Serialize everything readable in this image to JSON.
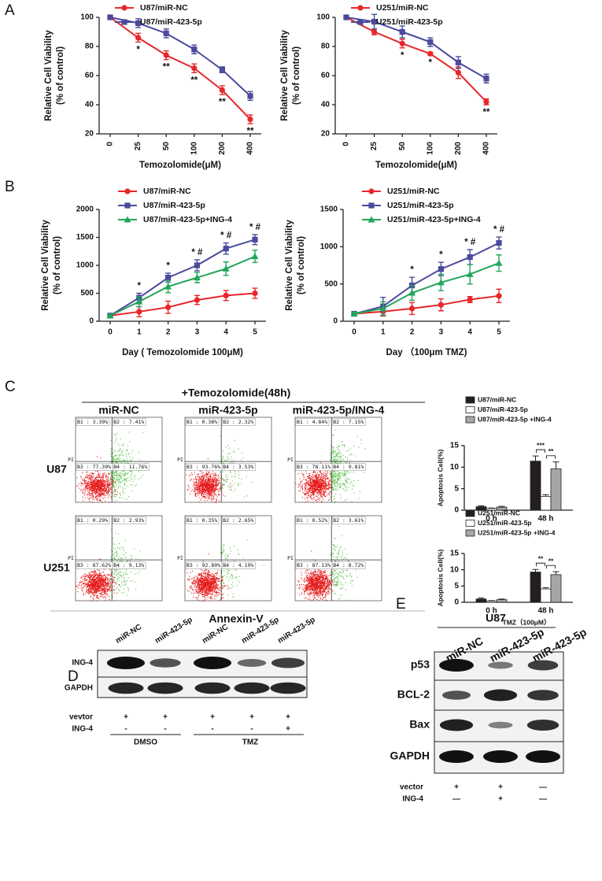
{
  "panel_labels": [
    "A",
    "B",
    "C",
    "D",
    "E"
  ],
  "chart_data": [
    {
      "type": "line",
      "xlabel": "Temozolomide(μM)",
      "ylabel": [
        "Relative Cell Viability",
        "(% of control)"
      ],
      "categories": [
        "0",
        "25",
        "50",
        "100",
        "200",
        "400"
      ],
      "ylim": [
        20,
        100
      ],
      "yticks": [
        20,
        40,
        60,
        80,
        100
      ],
      "legend": "upper left",
      "series": [
        {
          "name": "U87/miR-NC",
          "color": "#e8262b",
          "values": [
            100,
            86,
            74,
            65,
            50,
            30
          ],
          "errors": [
            1,
            3,
            3,
            3,
            3,
            3
          ]
        },
        {
          "name": "U87/miR-423-5p",
          "color": "#4b4a9c",
          "values": [
            100,
            96,
            89,
            78,
            64,
            46
          ],
          "errors": [
            1,
            3,
            3,
            3,
            2,
            3
          ]
        }
      ],
      "significance": [
        null,
        "*",
        "**",
        "**",
        "**",
        "**"
      ],
      "significance_position": "below"
    },
    {
      "type": "line",
      "xlabel": "Temozolomide(μM)",
      "ylabel": [
        "Relative Cell Viability",
        "(% of control)"
      ],
      "categories": [
        "0",
        "25",
        "50",
        "100",
        "200",
        "400"
      ],
      "ylim": [
        20,
        100
      ],
      "yticks": [
        20,
        40,
        60,
        80,
        100
      ],
      "legend": "upper left",
      "series": [
        {
          "name": "U251/miR-NC",
          "color": "#e8262b",
          "values": [
            100,
            90,
            82,
            75,
            62,
            42
          ],
          "errors": [
            1,
            2,
            3,
            1,
            4,
            2
          ]
        },
        {
          "name": "U251/miR-423-5p",
          "color": "#4b4a9c",
          "values": [
            100,
            97,
            90,
            83,
            69,
            58
          ],
          "errors": [
            1,
            5,
            4,
            3,
            4,
            3
          ]
        }
      ],
      "significance": [
        null,
        null,
        "*",
        "*",
        null,
        "**"
      ],
      "significance_position": "below"
    },
    {
      "type": "line",
      "xlabel": "Day ( Temozolomide 100μM)",
      "ylabel": [
        "Relative Cell Viability",
        "(% of control)"
      ],
      "categories": [
        "0",
        "1",
        "2",
        "3",
        "4",
        "5"
      ],
      "ylim": [
        0,
        2000
      ],
      "yticks": [
        0,
        500,
        1000,
        1500,
        2000
      ],
      "legend": "upper left",
      "series": [
        {
          "name": "U87/miR-NC",
          "color": "#e8262b",
          "values": [
            100,
            170,
            250,
            380,
            460,
            500
          ],
          "errors": [
            20,
            90,
            110,
            80,
            90,
            90
          ]
        },
        {
          "name": "U87/miR-423-5p",
          "color": "#4b4a9c",
          "values": [
            100,
            420,
            780,
            1000,
            1300,
            1460
          ],
          "errors": [
            20,
            80,
            80,
            100,
            100,
            90
          ]
        },
        {
          "name": "U87/miR-423-5p+ING-4",
          "color": "#22a55a",
          "values": [
            100,
            350,
            620,
            780,
            940,
            1160
          ],
          "errors": [
            20,
            90,
            110,
            90,
            120,
            110
          ]
        }
      ],
      "significance": [
        null,
        "*",
        "*",
        "* #",
        "* #",
        "* #"
      ],
      "significance_position": "above"
    },
    {
      "type": "line",
      "xlabel": "Day （100μm TMZ)",
      "ylabel": [
        "Relative Cell Viability",
        "(% of control)"
      ],
      "categories": [
        "0",
        "1",
        "2",
        "3",
        "4",
        "5"
      ],
      "ylim": [
        0,
        1500
      ],
      "yticks": [
        0,
        500,
        1000,
        1500
      ],
      "legend": "upper left",
      "series": [
        {
          "name": "U251/miR-NC",
          "color": "#e8262b",
          "values": [
            100,
            130,
            170,
            220,
            290,
            340
          ],
          "errors": [
            20,
            60,
            80,
            80,
            40,
            90
          ]
        },
        {
          "name": "U251/miR-423-5p",
          "color": "#4b4a9c",
          "values": [
            100,
            200,
            480,
            700,
            860,
            1050
          ],
          "errors": [
            20,
            120,
            110,
            90,
            100,
            80
          ]
        },
        {
          "name": "U251/miR-423-5p+ING-4",
          "color": "#22a55a",
          "values": [
            100,
            170,
            380,
            520,
            630,
            780
          ],
          "errors": [
            20,
            90,
            100,
            110,
            130,
            110
          ]
        }
      ],
      "significance": [
        null,
        null,
        "*",
        "*",
        "* #",
        "* #"
      ],
      "significance_position": "above"
    },
    {
      "type": "bar",
      "ylabel": "Apoptosis Cell(%)",
      "categories": [
        "0 h",
        "48 h"
      ],
      "ylim": [
        0,
        15
      ],
      "yticks": [
        0,
        5,
        10,
        15
      ],
      "legend": "upper left",
      "series": [
        {
          "name": "U87/miR-NC",
          "color": "#231f20",
          "values": [
            0.8,
            11.4
          ],
          "errors": [
            0.2,
            1.2
          ]
        },
        {
          "name": "U87/miR-423-5p",
          "color": "#ffffff",
          "values": [
            0.4,
            3.2
          ],
          "errors": [
            0.1,
            0.4
          ]
        },
        {
          "name": "U87/miR-423-5p +ING-4",
          "color": "#a6a6a6",
          "values": [
            0.7,
            9.6
          ],
          "errors": [
            0.2,
            1.6
          ]
        }
      ],
      "significance": [
        "***",
        "**"
      ]
    },
    {
      "type": "bar",
      "ylabel": "Apoptosis Cell(%)",
      "xlabel": "TMZ（100μM）",
      "categories": [
        "0 h",
        "48 h"
      ],
      "ylim": [
        0,
        15
      ],
      "yticks": [
        0,
        5,
        10,
        15
      ],
      "legend": "upper left",
      "series": [
        {
          "name": "U251/miR-NC",
          "color": "#231f20",
          "values": [
            1.0,
            9.3
          ],
          "errors": [
            0.3,
            0.8
          ]
        },
        {
          "name": "U251/miR-423-5p",
          "color": "#ffffff",
          "values": [
            0.4,
            4.1
          ],
          "errors": [
            0.1,
            0.4
          ]
        },
        {
          "name": "U251/miR-423-5p +ING-4",
          "color": "#a6a6a6",
          "values": [
            0.8,
            8.5
          ],
          "errors": [
            0.2,
            0.9
          ]
        }
      ],
      "significance": [
        "**",
        "**"
      ]
    }
  ],
  "flow": {
    "title": "+Temozolomide(48h)",
    "columns": [
      "miR-NC",
      "miR-423-5p",
      "miR-423-5p/ING-4"
    ],
    "rows": [
      "U87",
      "U251"
    ],
    "ylabel": "PI",
    "xlabel": "Annexin-V",
    "quadrants": [
      [
        [
          "B1 : 3.39%",
          "B2 : 7.41%",
          "B3 : 77.39%",
          "B4 : 11.76%"
        ],
        [
          "B1 : 0.38%",
          "B2 : 2.32%",
          "B3 : 93.76%",
          "B4 : 3.53%"
        ],
        [
          "B1 : 4.84%",
          "B2 : 7.15%",
          "B3 : 78.11%",
          "B4 : 9.81%"
        ]
      ],
      [
        [
          "B1 : 0.29%",
          "B2 : 2.93%",
          "B3 : 87.62%",
          "B4 : 9.13%"
        ],
        [
          "B1 : 0.35%",
          "B2 : 2.65%",
          "B3 : 92.80%",
          "B4 : 4.19%"
        ],
        [
          "B1 : 0.52%",
          "B2 : 3.61%",
          "B3 : 87.13%",
          "B4 : 8.72%"
        ]
      ]
    ]
  },
  "blot_d": {
    "lanes": [
      "miR-NC",
      "miR-423-5p",
      "miR-NC",
      "miR-423-5p",
      "miR-423-5p"
    ],
    "rows": [
      "ING-4",
      "GAPDH"
    ],
    "conditions": [
      {
        "name": "vevtor",
        "marks": [
          "+",
          "+",
          "+",
          "+",
          "+"
        ]
      },
      {
        "name": "ING-4",
        "marks": [
          "-",
          "-",
          "-",
          "-",
          "+"
        ]
      }
    ],
    "groups": [
      "DMSO",
      "TMZ"
    ]
  },
  "blot_e": {
    "header": "U87",
    "lanes": [
      "miR-NC",
      "miR-423-5p",
      "miR-423-5p"
    ],
    "rows": [
      "p53",
      "BCL-2",
      "Bax",
      "GAPDH"
    ],
    "conditions": [
      {
        "name": "vector",
        "marks": [
          "+",
          "+",
          "—"
        ]
      },
      {
        "name": "ING-4",
        "marks": [
          "—",
          "+",
          "—"
        ]
      }
    ]
  }
}
